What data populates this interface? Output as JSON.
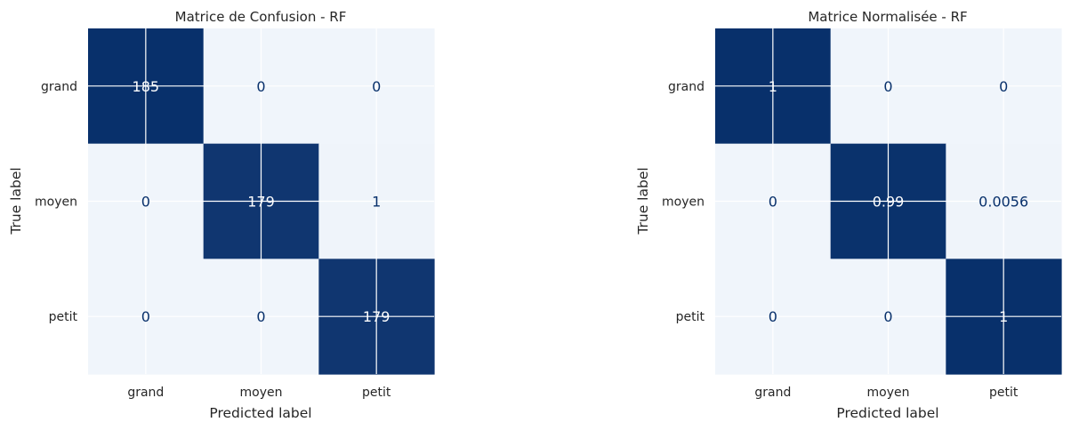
{
  "chart_data": [
    {
      "type": "heatmap",
      "title": "Matrice de Confusion - RF",
      "xlabel": "Predicted label",
      "ylabel": "True label",
      "x_categories": [
        "grand",
        "moyen",
        "petit"
      ],
      "y_categories": [
        "grand",
        "moyen",
        "petit"
      ],
      "values": [
        [
          185,
          0,
          0
        ],
        [
          0,
          179,
          1
        ],
        [
          0,
          0,
          179
        ]
      ],
      "value_labels": [
        [
          "185",
          "0",
          "0"
        ],
        [
          "0",
          "179",
          "1"
        ],
        [
          "0",
          "0",
          "179"
        ]
      ],
      "colormap": "Blues",
      "grid": true,
      "colors": {
        "high": "#08306b",
        "low": "#f7fbff",
        "dark_text": "#08306b",
        "light_text": "#ffffff"
      }
    },
    {
      "type": "heatmap",
      "title": "Matrice Normalisée - RF",
      "xlabel": "Predicted label",
      "ylabel": "True label",
      "x_categories": [
        "grand",
        "moyen",
        "petit"
      ],
      "y_categories": [
        "grand",
        "moyen",
        "petit"
      ],
      "values": [
        [
          1,
          0,
          0
        ],
        [
          0,
          0.99,
          0.0056
        ],
        [
          0,
          0,
          1
        ]
      ],
      "value_labels": [
        [
          "1",
          "0",
          "0"
        ],
        [
          "0",
          "0.99",
          "0.0056"
        ],
        [
          "0",
          "0",
          "1"
        ]
      ],
      "colormap": "Blues",
      "grid": true,
      "colors": {
        "high": "#08306b",
        "low": "#f7fbff",
        "dark_text": "#08306b",
        "light_text": "#ffffff"
      }
    }
  ]
}
